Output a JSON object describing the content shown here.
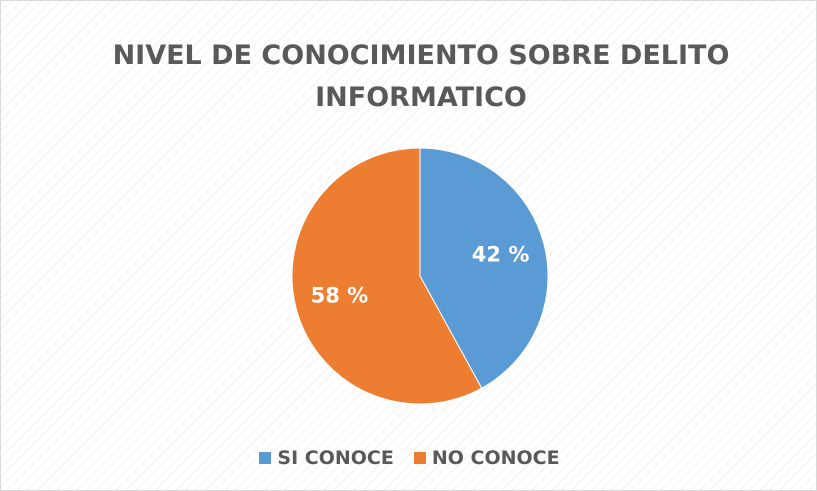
{
  "chart_data": {
    "type": "pie",
    "title": "NIVEL DE CONOCIMIENTO SOBRE DELITO INFORMATICO",
    "categories": [
      "SI CONOCE",
      "NO CONOCE"
    ],
    "values": [
      42,
      58
    ],
    "value_labels": [
      "42 %",
      "58 %"
    ],
    "colors": [
      "#5b9bd5",
      "#ed7d31"
    ],
    "legend": "bottom"
  }
}
